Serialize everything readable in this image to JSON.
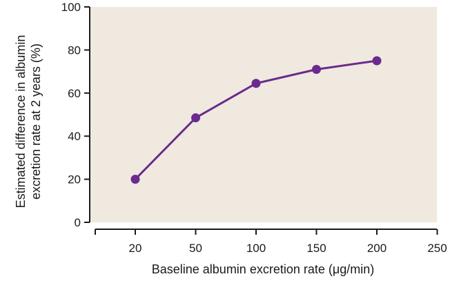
{
  "chart_data": {
    "type": "line",
    "title": "",
    "xlabel": "Baseline albumin excretion rate (μg/min)",
    "ylabel_lines": [
      "Estimated difference in albumin",
      "excretion rate at 2 years (%)"
    ],
    "x_ticks": [
      "20",
      "50",
      "100",
      "150",
      "200",
      "250"
    ],
    "y_ticks": [
      0,
      20,
      40,
      60,
      80,
      100
    ],
    "ylim": [
      0,
      100
    ],
    "x_scale": "categorical-evenly-spaced",
    "grid": false,
    "series": [
      {
        "categories": [
          "20",
          "50",
          "100",
          "150",
          "200"
        ],
        "values": [
          20,
          48.5,
          64.5,
          71,
          75
        ]
      }
    ],
    "colors": {
      "line": "#6a2a8e",
      "marker": "#6a2a8e",
      "plot_background": "#efe9df",
      "axis": "#1a1a1a"
    }
  }
}
